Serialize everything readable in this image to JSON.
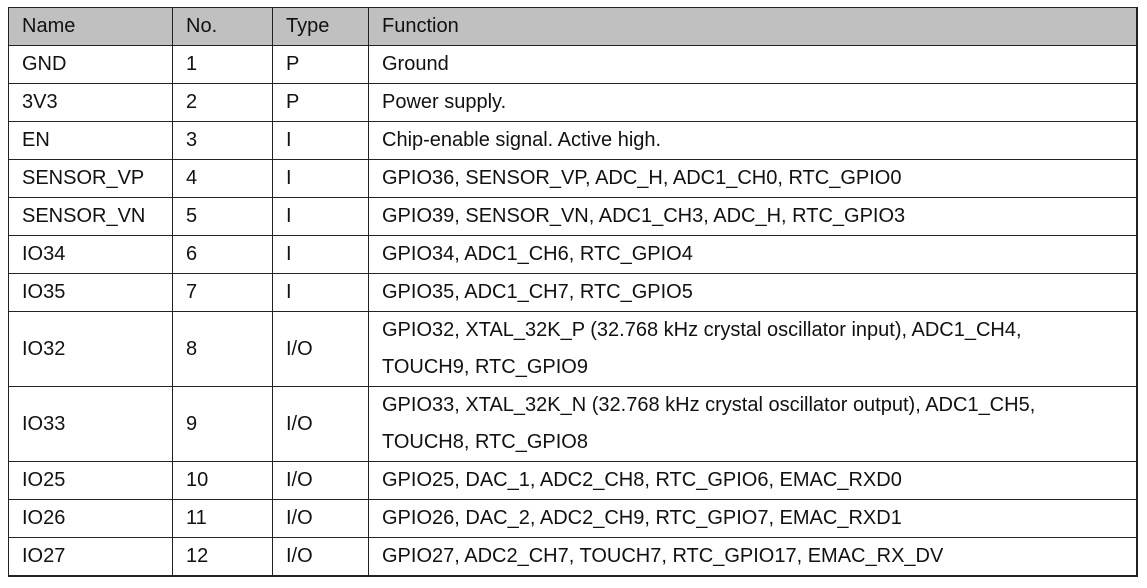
{
  "table": {
    "headers": [
      "Name",
      "No.",
      "Type",
      "Function"
    ],
    "rows": [
      {
        "name": "GND",
        "no": "1",
        "type": "P",
        "function": [
          "Ground"
        ]
      },
      {
        "name": "3V3",
        "no": "2",
        "type": "P",
        "function": [
          "Power supply."
        ]
      },
      {
        "name": "EN",
        "no": "3",
        "type": "I",
        "function": [
          "Chip-enable signal. Active high."
        ]
      },
      {
        "name": "SENSOR_VP",
        "no": "4",
        "type": "I",
        "function": [
          "GPIO36, SENSOR_VP, ADC_H, ADC1_CH0, RTC_GPIO0"
        ]
      },
      {
        "name": "SENSOR_VN",
        "no": "5",
        "type": "I",
        "function": [
          "GPIO39, SENSOR_VN, ADC1_CH3, ADC_H, RTC_GPIO3"
        ]
      },
      {
        "name": "IO34",
        "no": "6",
        "type": "I",
        "function": [
          "GPIO34, ADC1_CH6, RTC_GPIO4"
        ]
      },
      {
        "name": "IO35",
        "no": "7",
        "type": "I",
        "function": [
          "GPIO35, ADC1_CH7, RTC_GPIO5"
        ]
      },
      {
        "name": "IO32",
        "no": "8",
        "type": "I/O",
        "function": [
          "GPIO32, XTAL_32K_P (32.768 kHz crystal oscillator input), ADC1_CH4,",
          "TOUCH9, RTC_GPIO9"
        ]
      },
      {
        "name": "IO33",
        "no": "9",
        "type": "I/O",
        "function": [
          "GPIO33, XTAL_32K_N (32.768 kHz crystal oscillator output), ADC1_CH5,",
          "TOUCH8, RTC_GPIO8"
        ]
      },
      {
        "name": "IO25",
        "no": "10",
        "type": "I/O",
        "function": [
          "GPIO25, DAC_1, ADC2_CH8, RTC_GPIO6, EMAC_RXD0"
        ]
      },
      {
        "name": "IO26",
        "no": "11",
        "type": "I/O",
        "function": [
          "GPIO26, DAC_2, ADC2_CH9, RTC_GPIO7, EMAC_RXD1"
        ]
      },
      {
        "name": "IO27",
        "no": "12",
        "type": "I/O",
        "function": [
          "GPIO27, ADC2_CH7, TOUCH7, RTC_GPIO17, EMAC_RX_DV"
        ]
      }
    ]
  }
}
